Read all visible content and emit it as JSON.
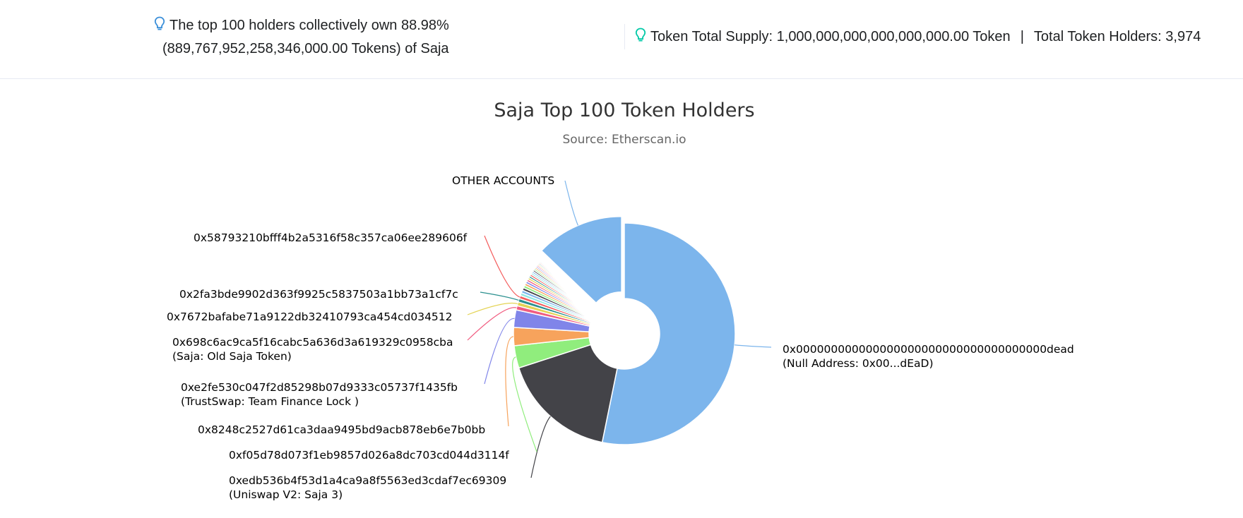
{
  "summary": {
    "top_holders_line1": "The top 100 holders collectively own 88.98%",
    "top_holders_line2": "(889,767,952,258,346,000.00 Tokens) of Saja",
    "total_supply": "Token Total Supply: 1,000,000,000,000,000,000.00 Token",
    "separator": "|",
    "total_holders": "Total Token Holders: 3,974",
    "icon": "lightbulb-icon",
    "icon_color_left": "#3b8fd9",
    "icon_color_right": "#00c9a7"
  },
  "chart_data": {
    "type": "pie",
    "variant": "donut",
    "title": "Saja Top 100 Token Holders",
    "subtitle": "Source: Etherscan.io",
    "unit": "%",
    "slices": [
      {
        "address": "0x000000000000000000000000000000000000dead",
        "label": "Null Address: 0x00...dEaD",
        "value": 52.2,
        "color": "#7cb5ec"
      },
      {
        "address": "0xedb536b4f53d1a4ca9a8f5563ed3cdaf7ec69309",
        "label": "Uniswap V2: Saja 3",
        "value": 16.5,
        "color": "#434348"
      },
      {
        "address": "0xf05d78d073f1eb9857d026a8dc703cd044d3114f",
        "label": "",
        "value": 3.2,
        "color": "#90ed7d"
      },
      {
        "address": "0x8248c2527d61ca3daa9495bd9acb878eb6e7b0bb",
        "label": "",
        "value": 2.6,
        "color": "#f7a35c"
      },
      {
        "address": "0xe2fe530c047f2d85298b07d9333c05737f1435fb",
        "label": "TrustSwap: Team Finance Lock ",
        "value": 2.5,
        "color": "#8085e9"
      },
      {
        "address": "0x698c6ac9ca5f16cabc5a636d3a619329c0958cba",
        "label": "Saja: Old Saja Token",
        "value": 0.6,
        "color": "#f15c80"
      },
      {
        "address": "0x7672bafabe71a9122db32410793ca454cd034512",
        "label": "",
        "value": 0.55,
        "color": "#e4d354"
      },
      {
        "address": "0x2fa3bde9902d363f9925c5837503a1bb73a1cf7c",
        "label": "",
        "value": 0.5,
        "color": "#2b908f"
      },
      {
        "address": "0x58793210bfff4b2a5316f58c357ca06ee289606f",
        "label": "",
        "value": 0.45,
        "color": "#f45b5b"
      },
      {
        "address": "",
        "label": "",
        "value": 0.42,
        "color": "#91e8e1"
      },
      {
        "address": "",
        "label": "",
        "value": 0.4,
        "color": "#7cb5ec"
      },
      {
        "address": "",
        "label": "",
        "value": 0.38,
        "color": "#434348"
      },
      {
        "address": "",
        "label": "",
        "value": 0.36,
        "color": "#90ed7d"
      },
      {
        "address": "",
        "label": "",
        "value": 0.34,
        "color": "#f7a35c"
      },
      {
        "address": "",
        "label": "",
        "value": 0.32,
        "color": "#8085e9"
      },
      {
        "address": "",
        "label": "",
        "value": 0.3,
        "color": "#f15c80"
      },
      {
        "address": "",
        "label": "",
        "value": 0.29,
        "color": "#e4d354"
      },
      {
        "address": "",
        "label": "",
        "value": 0.28,
        "color": "#2b908f"
      },
      {
        "address": "",
        "label": "",
        "value": 0.27,
        "color": "#f45b5b"
      },
      {
        "address": "",
        "label": "",
        "value": 0.26,
        "color": "#91e8e1"
      },
      {
        "address": "",
        "label": "",
        "value": 0.25,
        "color": "#7cb5ec"
      },
      {
        "address": "",
        "label": "",
        "value": 0.24,
        "color": "#434348"
      },
      {
        "address": "",
        "label": "",
        "value": 0.23,
        "color": "#90ed7d"
      },
      {
        "address": "",
        "label": "",
        "value": 0.22,
        "color": "#f7a35c"
      },
      {
        "address": "",
        "label": "",
        "value": 0.21,
        "color": "#8085e9"
      },
      {
        "address": "",
        "label": "",
        "value": 0.2,
        "color": "#f15c80"
      },
      {
        "address": "",
        "label": "",
        "value": 0.19,
        "color": "#e4d354"
      },
      {
        "address": "",
        "label": "",
        "value": 0.18,
        "color": "#2b908f"
      },
      {
        "address": "",
        "label": "",
        "value": 0.17,
        "color": "#f45b5b"
      },
      {
        "address": "",
        "label": "",
        "value": 0.16,
        "color": "#91e8e1"
      },
      {
        "address": "",
        "label": "",
        "value": 0.15,
        "color": "#7cb5ec"
      },
      {
        "address": "",
        "label": "",
        "value": 0.14,
        "color": "#434348"
      },
      {
        "address": "",
        "label": "",
        "value": 0.13,
        "color": "#90ed7d"
      },
      {
        "address": "",
        "label": "",
        "value": 0.12,
        "color": "#f7a35c"
      },
      {
        "address": "",
        "label": "",
        "value": 0.11,
        "color": "#8085e9"
      },
      {
        "address": "",
        "label": "",
        "value": 0.1,
        "color": "#f15c80"
      },
      {
        "address": "OTHER ACCOUNTS",
        "label": "",
        "value": 12.6,
        "color": "#7cb5ec",
        "sliced": true
      }
    ]
  }
}
